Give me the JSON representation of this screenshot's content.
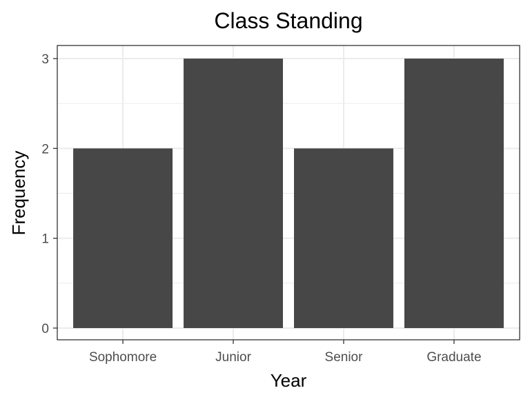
{
  "chart_data": {
    "type": "bar",
    "title": "Class Standing",
    "xlabel": "Year",
    "ylabel": "Frequency",
    "categories": [
      "Sophomore",
      "Junior",
      "Senior",
      "Graduate"
    ],
    "values": [
      2,
      3,
      2,
      3
    ],
    "ylim": [
      0,
      3
    ],
    "yticks": [
      "0",
      "1",
      "2",
      "3"
    ],
    "grid": true,
    "legend": "none",
    "colors": {
      "bar": "#474747",
      "grid": "#ebebeb",
      "panel_border": "#333333",
      "tick_label": "#4d4d4d"
    }
  }
}
